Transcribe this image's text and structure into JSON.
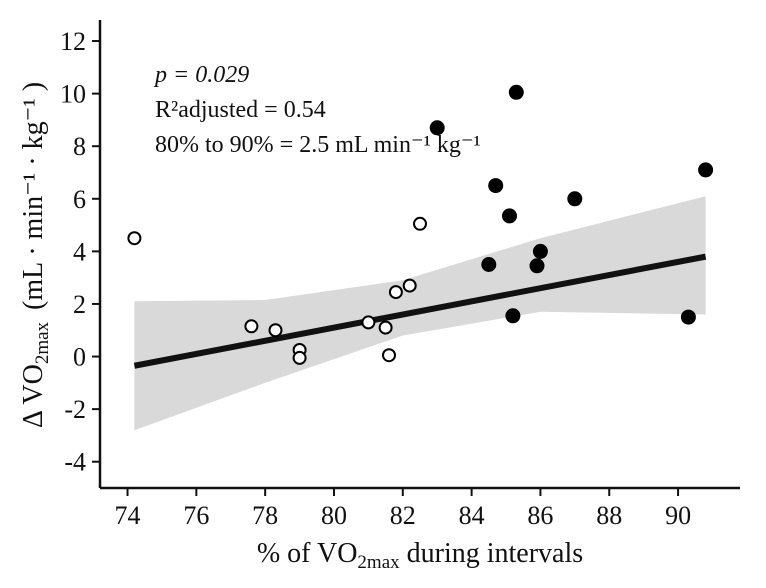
{
  "chart_data": {
    "type": "scatter",
    "xlabel": {
      "prefix": "% of VO",
      "sub": "2max",
      "suffix": " during intervals"
    },
    "ylabel": {
      "prefix": "Δ VO",
      "sub": "2max",
      "units": "(mL · min⁻¹ · kg⁻¹ )"
    },
    "xlim": [
      73.2,
      91.8
    ],
    "ylim": [
      -5.0,
      12.8
    ],
    "xticks": [
      74,
      76,
      78,
      80,
      82,
      84,
      86,
      88,
      90
    ],
    "yticks": [
      -4,
      -2,
      0,
      2,
      4,
      6,
      8,
      10,
      12
    ],
    "grid": false,
    "annotations": {
      "p_text": "p = 0.029",
      "r2_text": "R²adjusted = 0.54",
      "diff_text": "80% to 90% = 2.5 mL min⁻¹ kg⁻¹"
    },
    "regression": {
      "x": [
        74.2,
        90.8
      ],
      "y": [
        -0.35,
        3.8
      ]
    },
    "confidence_band": {
      "x": [
        74.2,
        78,
        82,
        86,
        90.8
      ],
      "lower": [
        -2.8,
        -1.0,
        0.8,
        1.7,
        1.6
      ],
      "upper": [
        2.1,
        2.15,
        2.9,
        4.5,
        6.1
      ]
    },
    "series": [
      {
        "marker": "open",
        "color": "#000000",
        "points": [
          [
            74.2,
            4.5
          ],
          [
            77.6,
            1.15
          ],
          [
            78.3,
            1.0
          ],
          [
            79.0,
            0.25
          ],
          [
            79.0,
            -0.05
          ],
          [
            81.0,
            1.3
          ],
          [
            81.5,
            1.1
          ],
          [
            81.6,
            0.05
          ],
          [
            81.8,
            2.45
          ],
          [
            82.2,
            2.7
          ],
          [
            82.5,
            5.05
          ]
        ]
      },
      {
        "marker": "filled",
        "color": "#000000",
        "points": [
          [
            83.0,
            8.7
          ],
          [
            84.5,
            3.5
          ],
          [
            84.7,
            6.5
          ],
          [
            85.1,
            5.35
          ],
          [
            85.2,
            1.55
          ],
          [
            85.3,
            10.05
          ],
          [
            85.9,
            3.45
          ],
          [
            86.0,
            4.0
          ],
          [
            87.0,
            6.0
          ],
          [
            90.3,
            1.5
          ],
          [
            90.8,
            7.1
          ]
        ]
      }
    ],
    "band_color": "#d9d9d9",
    "line_color": "#111111"
  }
}
